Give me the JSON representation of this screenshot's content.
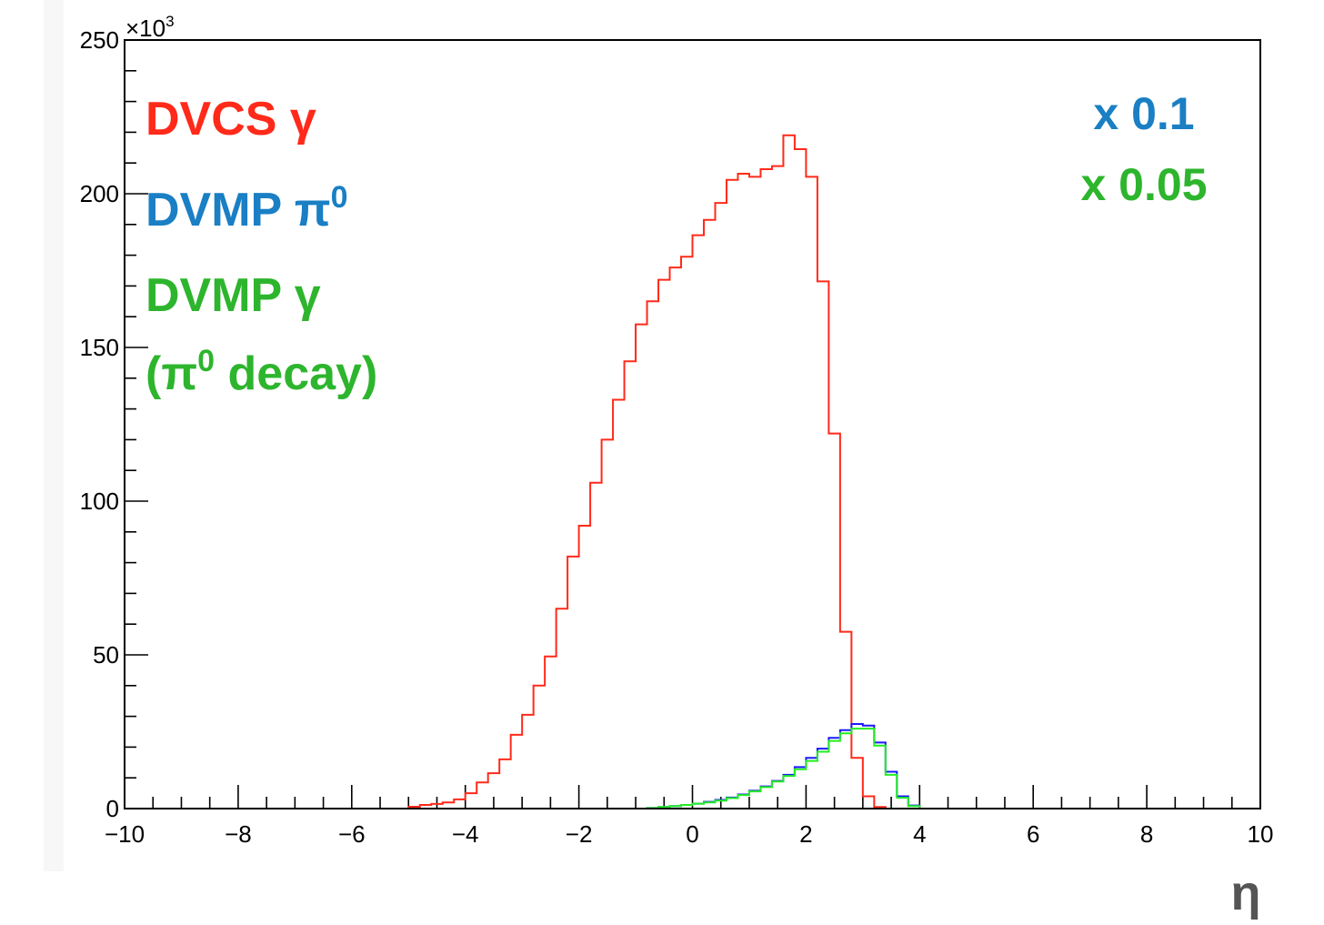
{
  "chart_data": {
    "type": "histogram",
    "title": "",
    "xlabel": "η",
    "ylabel": "",
    "xlim": [
      -10,
      10
    ],
    "ylim": [
      0,
      250
    ],
    "y_multiplier_label": "×10",
    "y_multiplier_exponent": "3",
    "x_ticks": [
      -10,
      -8,
      -6,
      -4,
      -2,
      0,
      2,
      4,
      6,
      8,
      10
    ],
    "x_tick_labels": [
      "−10",
      "−8",
      "−6",
      "−4",
      "−2",
      "0",
      "2",
      "4",
      "6",
      "8",
      "10"
    ],
    "y_ticks": [
      0,
      50,
      100,
      150,
      200,
      250
    ],
    "y_tick_labels": [
      "0",
      "50",
      "100",
      "150",
      "200",
      "250"
    ],
    "bin_width": 0.2,
    "grid": false,
    "colors": {
      "dvcs": "#ff2a1a",
      "pi0": "#1a1aff",
      "gamma": "#22ee22",
      "pi0_text": "#1a7fc4",
      "gamma_text": "#2db52d"
    },
    "labels": {
      "dvcs": "DVCS γ",
      "pi0_main": "DVMP π",
      "pi0_sup": "0",
      "gamma": "DVMP γ",
      "decay_open": "(π",
      "decay_sup": "0",
      "decay_rest": " decay)",
      "scale_pi0": "x 0.1",
      "scale_gamma": "x 0.05"
    },
    "series": [
      {
        "name": "DVCS γ",
        "color": "#ff2a1a",
        "start": -5.0,
        "values": [
          0.6,
          1.2,
          1.5,
          2.0,
          3.0,
          5.0,
          8.5,
          11.5,
          16.0,
          24.0,
          30.5,
          40.0,
          49.5,
          65.0,
          82.0,
          92.0,
          106.0,
          120.0,
          133.0,
          145.5,
          157.5,
          165.0,
          172.0,
          176.0,
          179.5,
          186.5,
          191.5,
          197.0,
          204.5,
          206.5,
          205.5,
          208.0,
          209.0,
          219.0,
          214.5,
          205.5,
          171.5,
          122.0,
          57.5,
          16.5,
          4.0,
          0.5
        ]
      },
      {
        "name": "DVMP π0",
        "color": "#1a1aff",
        "start": -0.8,
        "values": [
          0.2,
          0.5,
          0.8,
          1.2,
          1.6,
          2.2,
          2.8,
          3.6,
          4.6,
          5.8,
          7.2,
          9.0,
          11.0,
          13.5,
          16.5,
          19.5,
          23.0,
          25.5,
          27.5,
          27.0,
          21.5,
          12.0,
          4.0,
          1.0
        ]
      },
      {
        "name": "DVMP γ",
        "color": "#22ee22",
        "start": -0.8,
        "values": [
          0.2,
          0.5,
          0.8,
          1.2,
          1.6,
          2.0,
          2.6,
          3.4,
          4.4,
          5.6,
          7.0,
          8.8,
          10.6,
          12.8,
          15.5,
          18.5,
          22.0,
          24.5,
          26.0,
          26.0,
          20.5,
          11.0,
          3.5,
          0.8
        ]
      }
    ]
  }
}
